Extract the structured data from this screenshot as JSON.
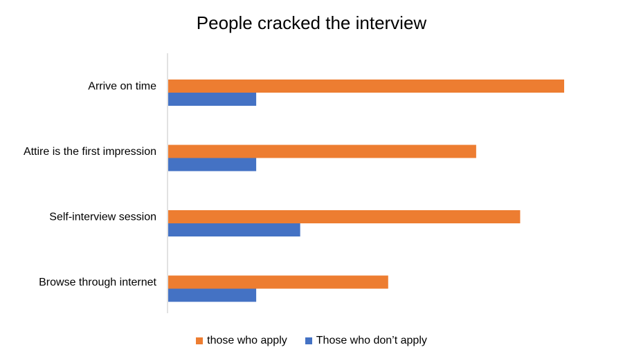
{
  "chart_data": {
    "type": "bar",
    "orientation": "horizontal",
    "title": "People cracked the interview",
    "categories": [
      "Arrive on time",
      "Attire is the first impression",
      "Self-interview session",
      "Browse through internet"
    ],
    "series": [
      {
        "name": "those who apply",
        "color": "#ED7D31",
        "values": [
          90,
          70,
          80,
          50
        ]
      },
      {
        "name": "Those who don’t apply",
        "color": "#4472C4",
        "values": [
          20,
          20,
          30,
          20
        ]
      }
    ],
    "xlim": [
      0,
      100
    ],
    "xaxis_visible": false,
    "grid": false,
    "legend_position": "bottom"
  }
}
